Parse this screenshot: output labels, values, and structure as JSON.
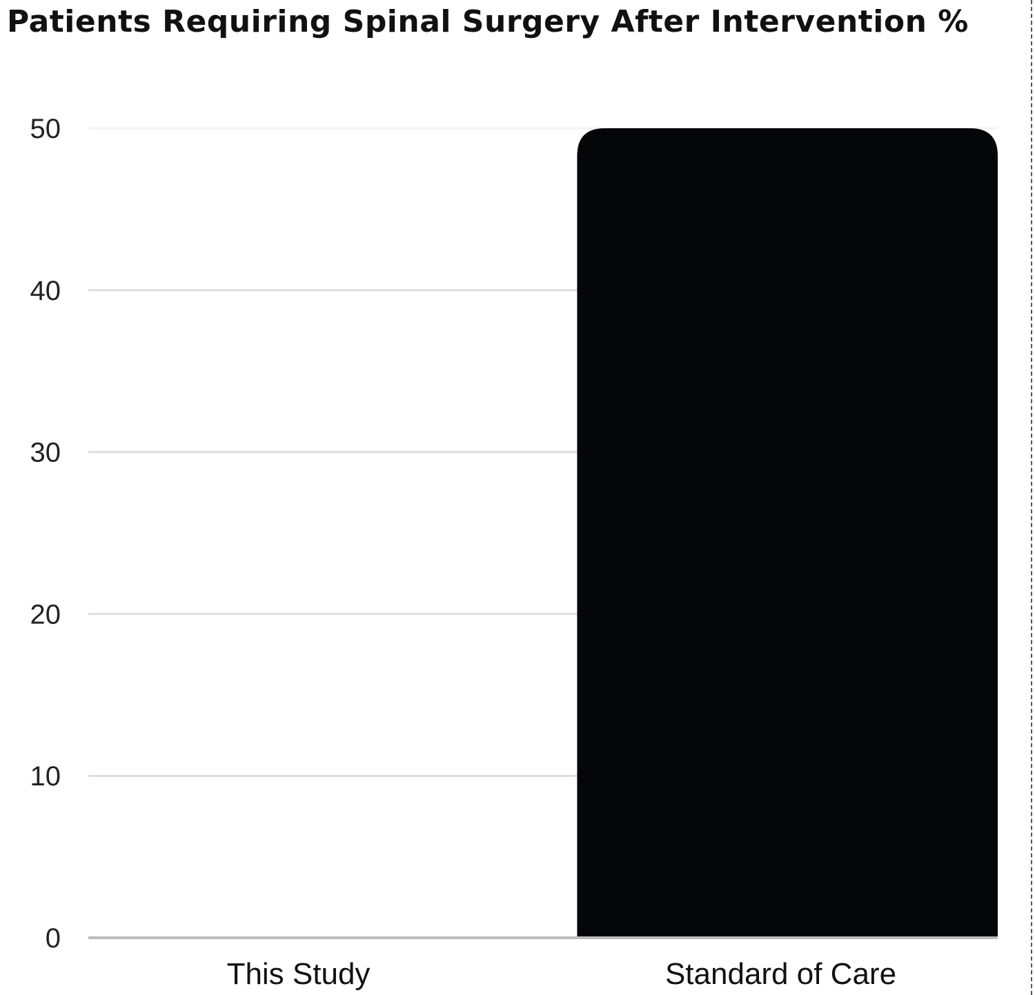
{
  "chart_data": {
    "type": "bar",
    "title": "Patients Requiring Spinal Surgery After Intervention %",
    "categories": [
      "This Study",
      "Standard of Care"
    ],
    "values": [
      0,
      50
    ],
    "ylim": [
      0,
      50
    ],
    "yticks": [
      0,
      10,
      20,
      30,
      40,
      50
    ],
    "xlabel": "",
    "ylabel": "",
    "grid": true,
    "bar_color": "#050608",
    "grid_color": "#dddddd"
  }
}
